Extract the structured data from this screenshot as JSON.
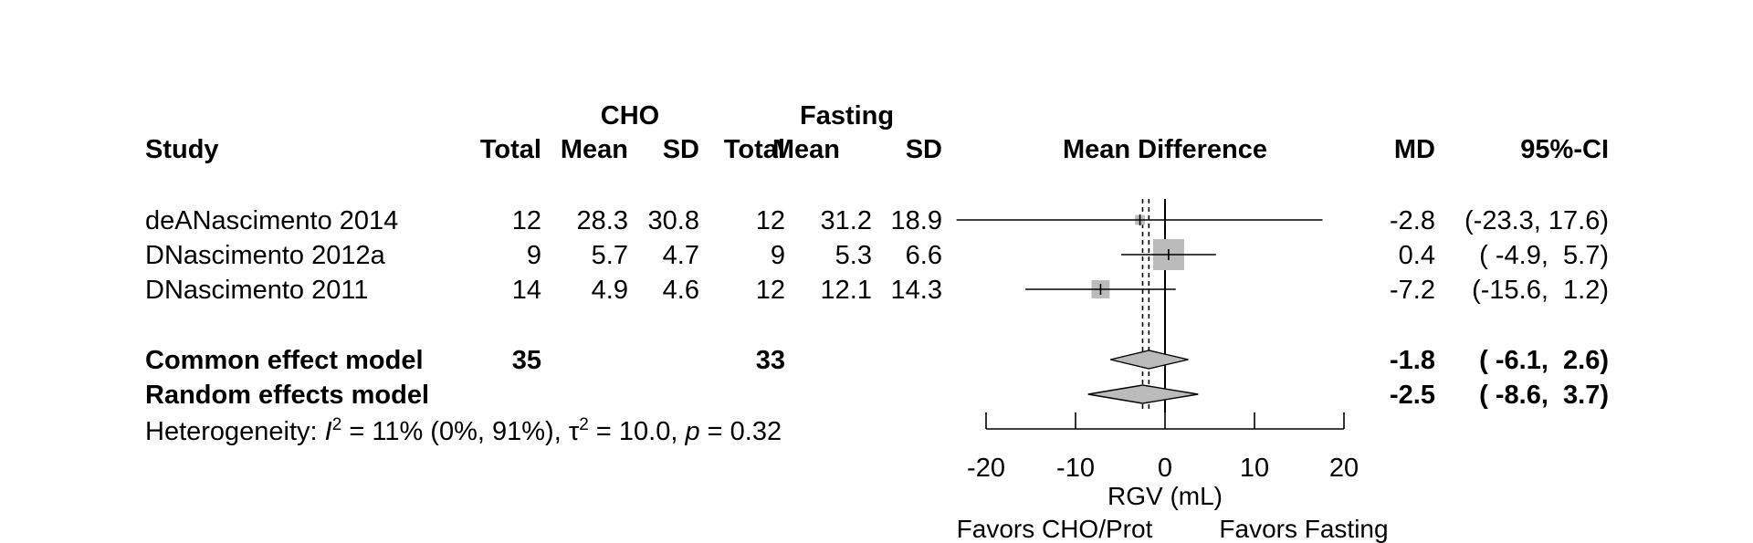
{
  "headers": {
    "group1": "CHO",
    "group2": "Fasting",
    "study": "Study",
    "total": "Total",
    "mean": "Mean",
    "sd": "SD",
    "effect": "Mean Difference",
    "md": "MD",
    "ci": "95%-CI"
  },
  "studies": [
    {
      "name": "deANascimento 2014",
      "cho_total": "12",
      "cho_mean": "28.3",
      "cho_sd": "30.8",
      "fast_total": "12",
      "fast_mean": "31.2",
      "fast_sd": "18.9",
      "md_text": "-2.8",
      "ci_text": "(-23.3, 17.6)"
    },
    {
      "name": "DNascimento 2012a",
      "cho_total": "9",
      "cho_mean": "5.7",
      "cho_sd": "4.7",
      "fast_total": "9",
      "fast_mean": "5.3",
      "fast_sd": "6.6",
      "md_text": "0.4",
      "ci_text": "( -4.9,  5.7)"
    },
    {
      "name": "DNascimento 2011",
      "cho_total": "14",
      "cho_mean": "4.9",
      "cho_sd": "4.6",
      "fast_total": "12",
      "fast_mean": "12.1",
      "fast_sd": "14.3",
      "md_text": "-7.2",
      "ci_text": "(-15.6,  1.2)"
    }
  ],
  "pooled": [
    {
      "name": "Common effect model",
      "cho_total": "35",
      "fast_total": "33",
      "md_text": "-1.8",
      "ci_text": "( -6.1,  2.6)"
    },
    {
      "name": "Random effects model",
      "cho_total": "",
      "fast_total": "",
      "md_text": "-2.5",
      "ci_text": "( -8.6,  3.7)"
    }
  ],
  "heterogeneity": {
    "prefix": "Heterogeneity: ",
    "i_symbol": "I",
    "i_exp": "2",
    "i_value": " = 11% (0%, 91%), ",
    "tau_symbol": "τ",
    "tau_exp": "2",
    "tau_value": " = 10.0, ",
    "p_symbol": "p",
    "p_value": " = 0.32"
  },
  "chart_data": {
    "type": "forest",
    "xlabel": "RGV (mL)",
    "xlim": [
      -20,
      20
    ],
    "xticks": [
      -20,
      -10,
      0,
      10,
      20
    ],
    "xtick_labels": [
      "-20",
      "-10",
      "0",
      "10",
      "20"
    ],
    "favors_left": "Favors CHO/Prot",
    "favors_right": "Favors Fasting",
    "reference_line": 0,
    "studies": [
      {
        "name": "deANascimento 2014",
        "md": -2.8,
        "lower": -23.3,
        "upper": 17.6,
        "weight": 0.05
      },
      {
        "name": "DNascimento 2012a",
        "md": 0.4,
        "lower": -4.9,
        "upper": 5.7,
        "weight": 1.0
      },
      {
        "name": "DNascimento 2011",
        "md": -7.2,
        "lower": -15.6,
        "upper": 1.2,
        "weight": 0.28
      }
    ],
    "pooled": [
      {
        "name": "Common effect model",
        "md": -1.8,
        "lower": -6.1,
        "upper": 2.6
      },
      {
        "name": "Random effects model",
        "md": -2.5,
        "lower": -8.6,
        "upper": 3.7
      }
    ],
    "box_color": "#bbbbbb",
    "diamond_color": "#bbbbbb"
  }
}
